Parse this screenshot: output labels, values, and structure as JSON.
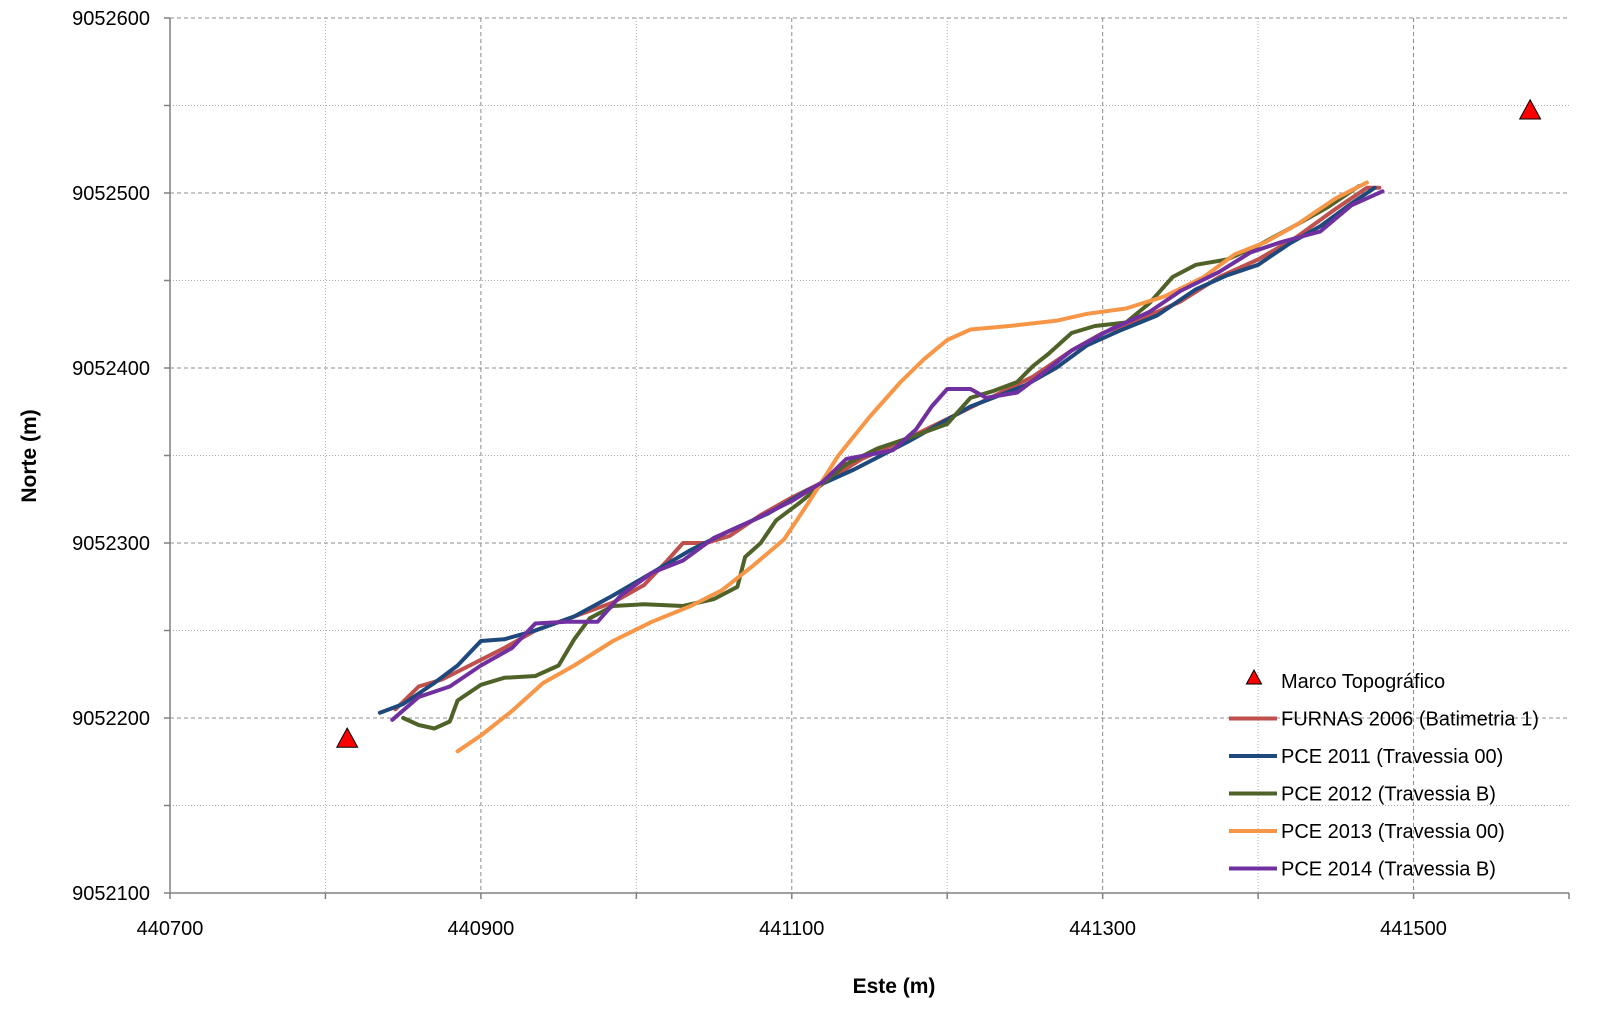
{
  "chart_data": {
    "type": "line",
    "title": "",
    "xlabel": "Este (m)",
    "ylabel": "Norte (m)",
    "xlim": [
      440700,
      441600
    ],
    "ylim": [
      9052100,
      9052600
    ],
    "x_ticks": [
      "440700",
      "440900",
      "441100",
      "441300",
      "441500"
    ],
    "y_ticks": [
      "9052100",
      "9052200",
      "9052300",
      "9052400",
      "9052500",
      "9052600"
    ],
    "x_major_step": 200,
    "x_minor_step": 100,
    "y_major_step": 100,
    "y_minor_step": 50,
    "grid": true,
    "legend_position": "bottom-right",
    "markers": {
      "name": "Marco Topográfico",
      "symbol": "triangle",
      "color": "#ff0000",
      "points": [
        [
          440814,
          9052188
        ],
        [
          441575,
          9052547
        ]
      ]
    },
    "series": [
      {
        "name": "FURNAS 2006 (Batimetria 1)",
        "color": "#c0504d",
        "points": [
          [
            440845,
            9052205
          ],
          [
            440860,
            9052218
          ],
          [
            440875,
            9052222
          ],
          [
            440895,
            9052231
          ],
          [
            440915,
            9052240
          ],
          [
            440935,
            9052250
          ],
          [
            440960,
            9052258
          ],
          [
            440985,
            9052266
          ],
          [
            441005,
            9052276
          ],
          [
            441020,
            9052290
          ],
          [
            441030,
            9052300
          ],
          [
            441045,
            9052300
          ],
          [
            441060,
            9052304
          ],
          [
            441080,
            9052316
          ],
          [
            441100,
            9052326
          ],
          [
            441125,
            9052337
          ],
          [
            441145,
            9052348
          ],
          [
            441175,
            9052360
          ],
          [
            441205,
            9052373
          ],
          [
            441230,
            9052384
          ],
          [
            441255,
            9052395
          ],
          [
            441280,
            9052410
          ],
          [
            441300,
            9052420
          ],
          [
            441325,
            9052428
          ],
          [
            441350,
            9052438
          ],
          [
            441375,
            9052452
          ],
          [
            441400,
            9052462
          ],
          [
            441425,
            9052475
          ],
          [
            441450,
            9052491
          ],
          [
            441470,
            9052503
          ],
          [
            441478,
            9052503
          ]
        ]
      },
      {
        "name": "PCE 2011 (Travessia 00)",
        "color": "#1f497d",
        "points": [
          [
            440835,
            9052203
          ],
          [
            440850,
            9052208
          ],
          [
            440870,
            9052220
          ],
          [
            440885,
            9052230
          ],
          [
            440900,
            9052244
          ],
          [
            440915,
            9052245
          ],
          [
            440935,
            9052250
          ],
          [
            440960,
            9052258
          ],
          [
            440985,
            9052270
          ],
          [
            441010,
            9052283
          ],
          [
            441035,
            9052296
          ],
          [
            441060,
            9052307
          ],
          [
            441085,
            9052317
          ],
          [
            441110,
            9052330
          ],
          [
            441140,
            9052342
          ],
          [
            441175,
            9052358
          ],
          [
            441215,
            9052378
          ],
          [
            441250,
            9052390
          ],
          [
            441270,
            9052400
          ],
          [
            441290,
            9052413
          ],
          [
            441310,
            9052421
          ],
          [
            441335,
            9052430
          ],
          [
            441360,
            9052445
          ],
          [
            441380,
            9052453
          ],
          [
            441400,
            9052459
          ],
          [
            441420,
            9052471
          ],
          [
            441440,
            9052481
          ],
          [
            441460,
            9052494
          ],
          [
            441475,
            9052503
          ]
        ]
      },
      {
        "name": "PCE 2012 (Travessia B)",
        "color": "#4f6228",
        "points": [
          [
            440850,
            9052200
          ],
          [
            440860,
            9052196
          ],
          [
            440870,
            9052194
          ],
          [
            440880,
            9052198
          ],
          [
            440885,
            9052210
          ],
          [
            440900,
            9052219
          ],
          [
            440915,
            9052223
          ],
          [
            440935,
            9052224
          ],
          [
            440950,
            9052230
          ],
          [
            440960,
            9052245
          ],
          [
            440970,
            9052257
          ],
          [
            440985,
            9052264
          ],
          [
            441005,
            9052265
          ],
          [
            441030,
            9052264
          ],
          [
            441050,
            9052268
          ],
          [
            441065,
            9052275
          ],
          [
            441070,
            9052292
          ],
          [
            441080,
            9052300
          ],
          [
            441090,
            9052313
          ],
          [
            441105,
            9052323
          ],
          [
            441120,
            9052334
          ],
          [
            441135,
            9052345
          ],
          [
            441155,
            9052354
          ],
          [
            441175,
            9052360
          ],
          [
            441200,
            9052368
          ],
          [
            441215,
            9052383
          ],
          [
            441230,
            9052387
          ],
          [
            441245,
            9052392
          ],
          [
            441255,
            9052401
          ],
          [
            441265,
            9052408
          ],
          [
            441280,
            9052420
          ],
          [
            441295,
            9052424
          ],
          [
            441315,
            9052426
          ],
          [
            441330,
            9052437
          ],
          [
            441345,
            9052452
          ],
          [
            441360,
            9052459
          ],
          [
            441380,
            9052462
          ],
          [
            441400,
            9052470
          ],
          [
            441425,
            9052482
          ],
          [
            441445,
            9052492
          ],
          [
            441465,
            9052504
          ]
        ]
      },
      {
        "name": "PCE 2013 (Travessia 00)",
        "color": "#f79646",
        "points": [
          [
            440885,
            9052181
          ],
          [
            440900,
            9052190
          ],
          [
            440920,
            9052204
          ],
          [
            440940,
            9052220
          ],
          [
            440960,
            9052230
          ],
          [
            440985,
            9052244
          ],
          [
            441010,
            9052255
          ],
          [
            441035,
            9052264
          ],
          [
            441055,
            9052273
          ],
          [
            441075,
            9052287
          ],
          [
            441095,
            9052302
          ],
          [
            441110,
            9052322
          ],
          [
            441130,
            9052350
          ],
          [
            441150,
            9052372
          ],
          [
            441170,
            9052392
          ],
          [
            441185,
            9052405
          ],
          [
            441200,
            9052416
          ],
          [
            441215,
            9052422
          ],
          [
            441240,
            9052424
          ],
          [
            441270,
            9052427
          ],
          [
            441290,
            9052431
          ],
          [
            441315,
            9052434
          ],
          [
            441340,
            9052441
          ],
          [
            441365,
            9052452
          ],
          [
            441385,
            9052465
          ],
          [
            441405,
            9052472
          ],
          [
            441425,
            9052482
          ],
          [
            441450,
            9052497
          ],
          [
            441470,
            9052506
          ]
        ]
      },
      {
        "name": "PCE 2014 (Travessia B)",
        "color": "#7030a0",
        "points": [
          [
            440843,
            9052199
          ],
          [
            440860,
            9052212
          ],
          [
            440880,
            9052218
          ],
          [
            440900,
            9052230
          ],
          [
            440920,
            9052240
          ],
          [
            440935,
            9052254
          ],
          [
            440955,
            9052255
          ],
          [
            440975,
            9052255
          ],
          [
            440990,
            9052270
          ],
          [
            441010,
            9052283
          ],
          [
            441030,
            9052290
          ],
          [
            441050,
            9052303
          ],
          [
            441075,
            9052313
          ],
          [
            441100,
            9052324
          ],
          [
            441120,
            9052335
          ],
          [
            441135,
            9052348
          ],
          [
            441165,
            9052353
          ],
          [
            441180,
            9052365
          ],
          [
            441190,
            9052378
          ],
          [
            441200,
            9052388
          ],
          [
            441215,
            9052388
          ],
          [
            441225,
            9052383
          ],
          [
            441245,
            9052386
          ],
          [
            441260,
            9052396
          ],
          [
            441280,
            9052410
          ],
          [
            441305,
            9052422
          ],
          [
            441330,
            9052432
          ],
          [
            441350,
            9052444
          ],
          [
            441375,
            9052455
          ],
          [
            441395,
            9052466
          ],
          [
            441415,
            9052472
          ],
          [
            441440,
            9052478
          ],
          [
            441460,
            9052493
          ],
          [
            441480,
            9052501
          ]
        ]
      }
    ]
  }
}
